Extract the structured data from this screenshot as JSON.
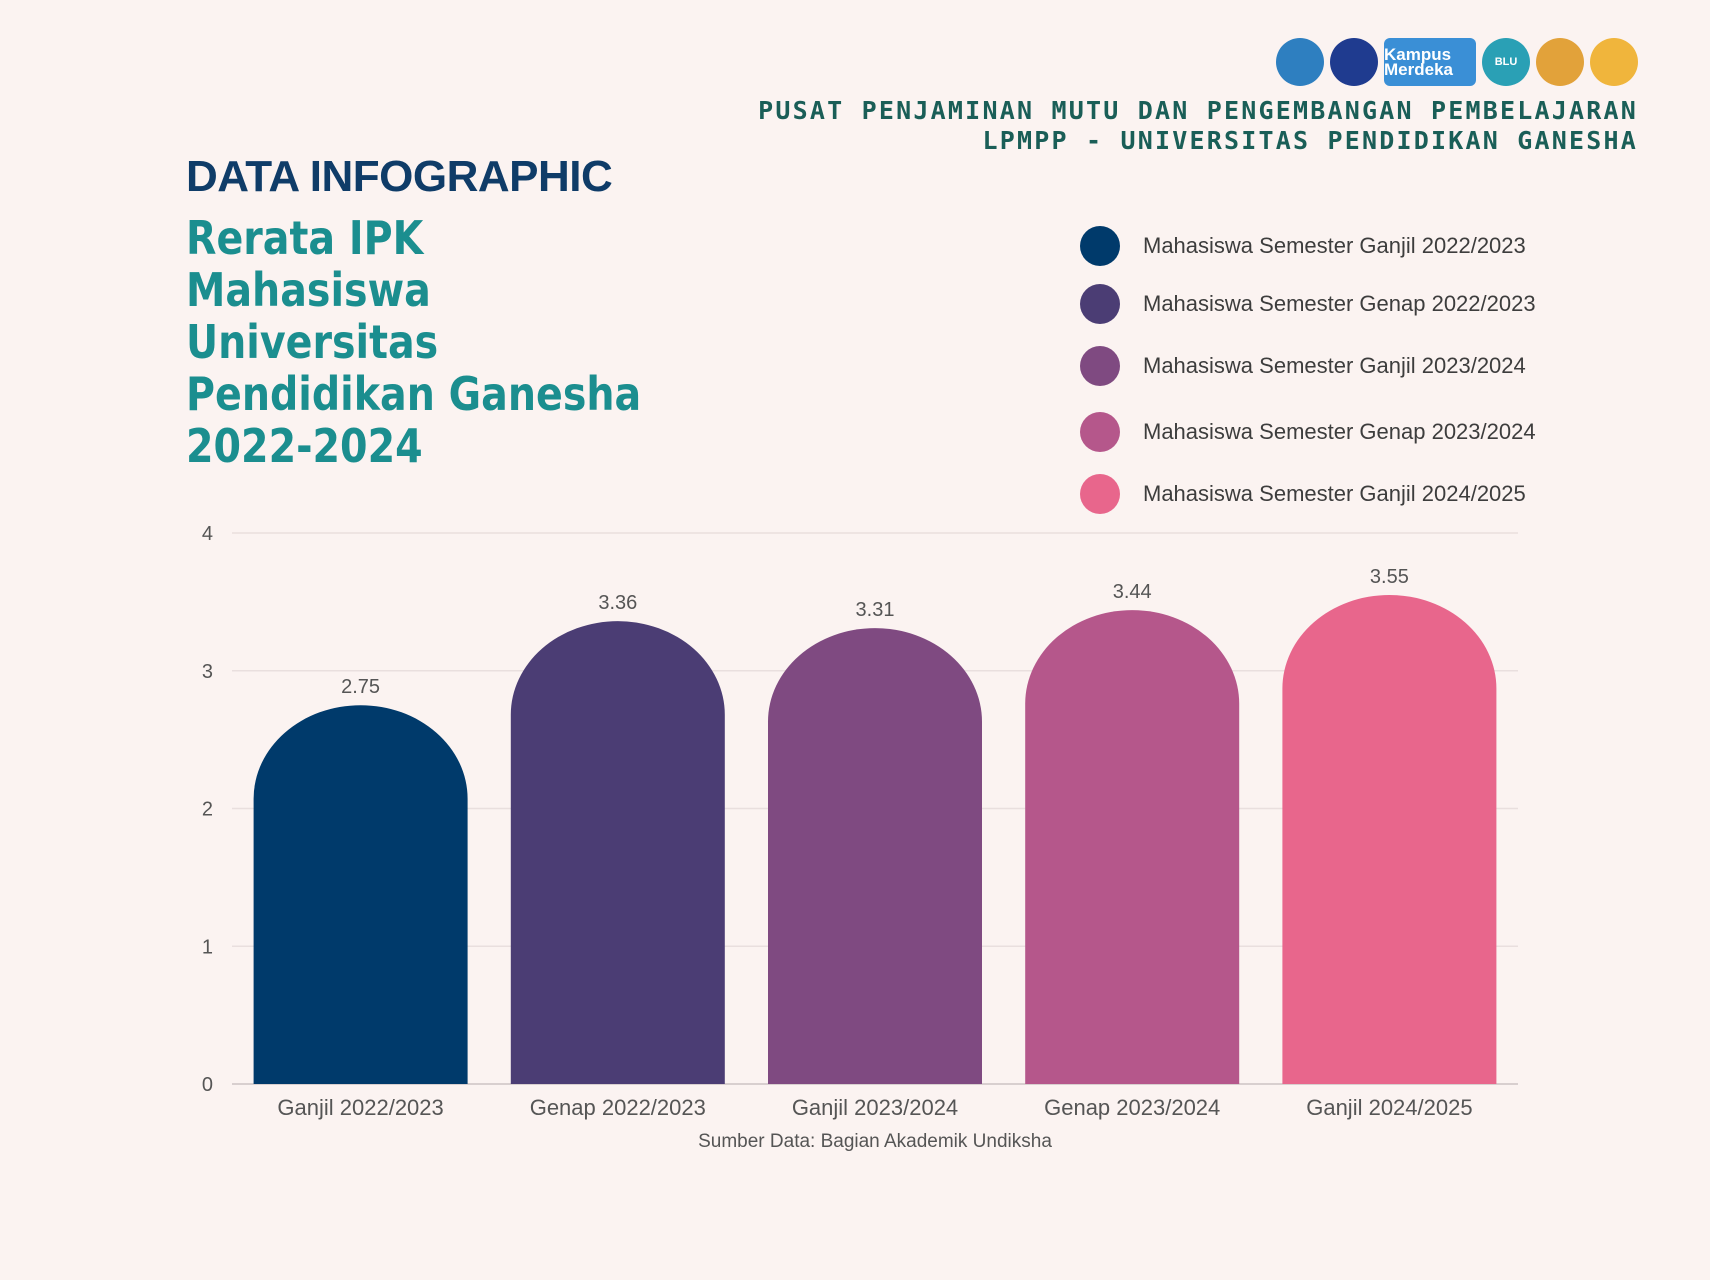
{
  "header": {
    "logos": [
      {
        "icon": "kemendikbud-logo-icon",
        "color": "#2e7fc0",
        "text": ""
      },
      {
        "icon": "undiksha-logo-icon",
        "color": "#1f3b8f",
        "text": ""
      },
      {
        "icon": "kampus-merdeka-logo-icon",
        "color": "#3a8fd6",
        "text": "Kampus Merdeka"
      },
      {
        "icon": "blu-logo-icon",
        "color": "#2aa0b5",
        "text": "BLU"
      },
      {
        "icon": "seal-logo-icon",
        "color": "#e2a23a",
        "text": ""
      },
      {
        "icon": "mascot-logo-icon",
        "color": "#f0b53c",
        "text": ""
      }
    ],
    "org_line1": "PUSAT PENJAMINAN MUTU DAN PENGEMBANGAN PEMBELAJARAN",
    "org_line2": "LPMPP - UNIVERSITAS PENDIDIKAN GANESHA"
  },
  "kicker": "DATA INFOGRAPHIC",
  "headline": "Rerata IPK Mahasiswa Universitas Pendidikan Ganesha 2022-2024",
  "chart_data": {
    "type": "bar",
    "categories": [
      "Ganjil 2022/2023",
      "Genap 2022/2023",
      "Ganjil 2023/2024",
      "Genap 2023/2024",
      "Ganjil 2024/2025"
    ],
    "values": [
      2.75,
      3.36,
      3.31,
      3.44,
      3.55
    ],
    "colors": [
      "#003a6b",
      "#4b3d74",
      "#7f4a81",
      "#b5578b",
      "#e8668c"
    ],
    "legend": [
      "Mahasiswa Semester Ganjil 2022/2023",
      "Mahasiswa Semester Genap 2022/2023",
      "Mahasiswa Semester Ganjil 2023/2024",
      "Mahasiswa Semester Genap 2023/2024",
      "Mahasiswa Semester Ganjil 2024/2025"
    ],
    "legend_position": "top-right",
    "ylim": [
      0,
      4
    ],
    "yticks": [
      "0",
      "1",
      "2",
      "3",
      "4"
    ],
    "grid": true,
    "source": "Sumber Data: Bagian Akademik Undiksha"
  }
}
